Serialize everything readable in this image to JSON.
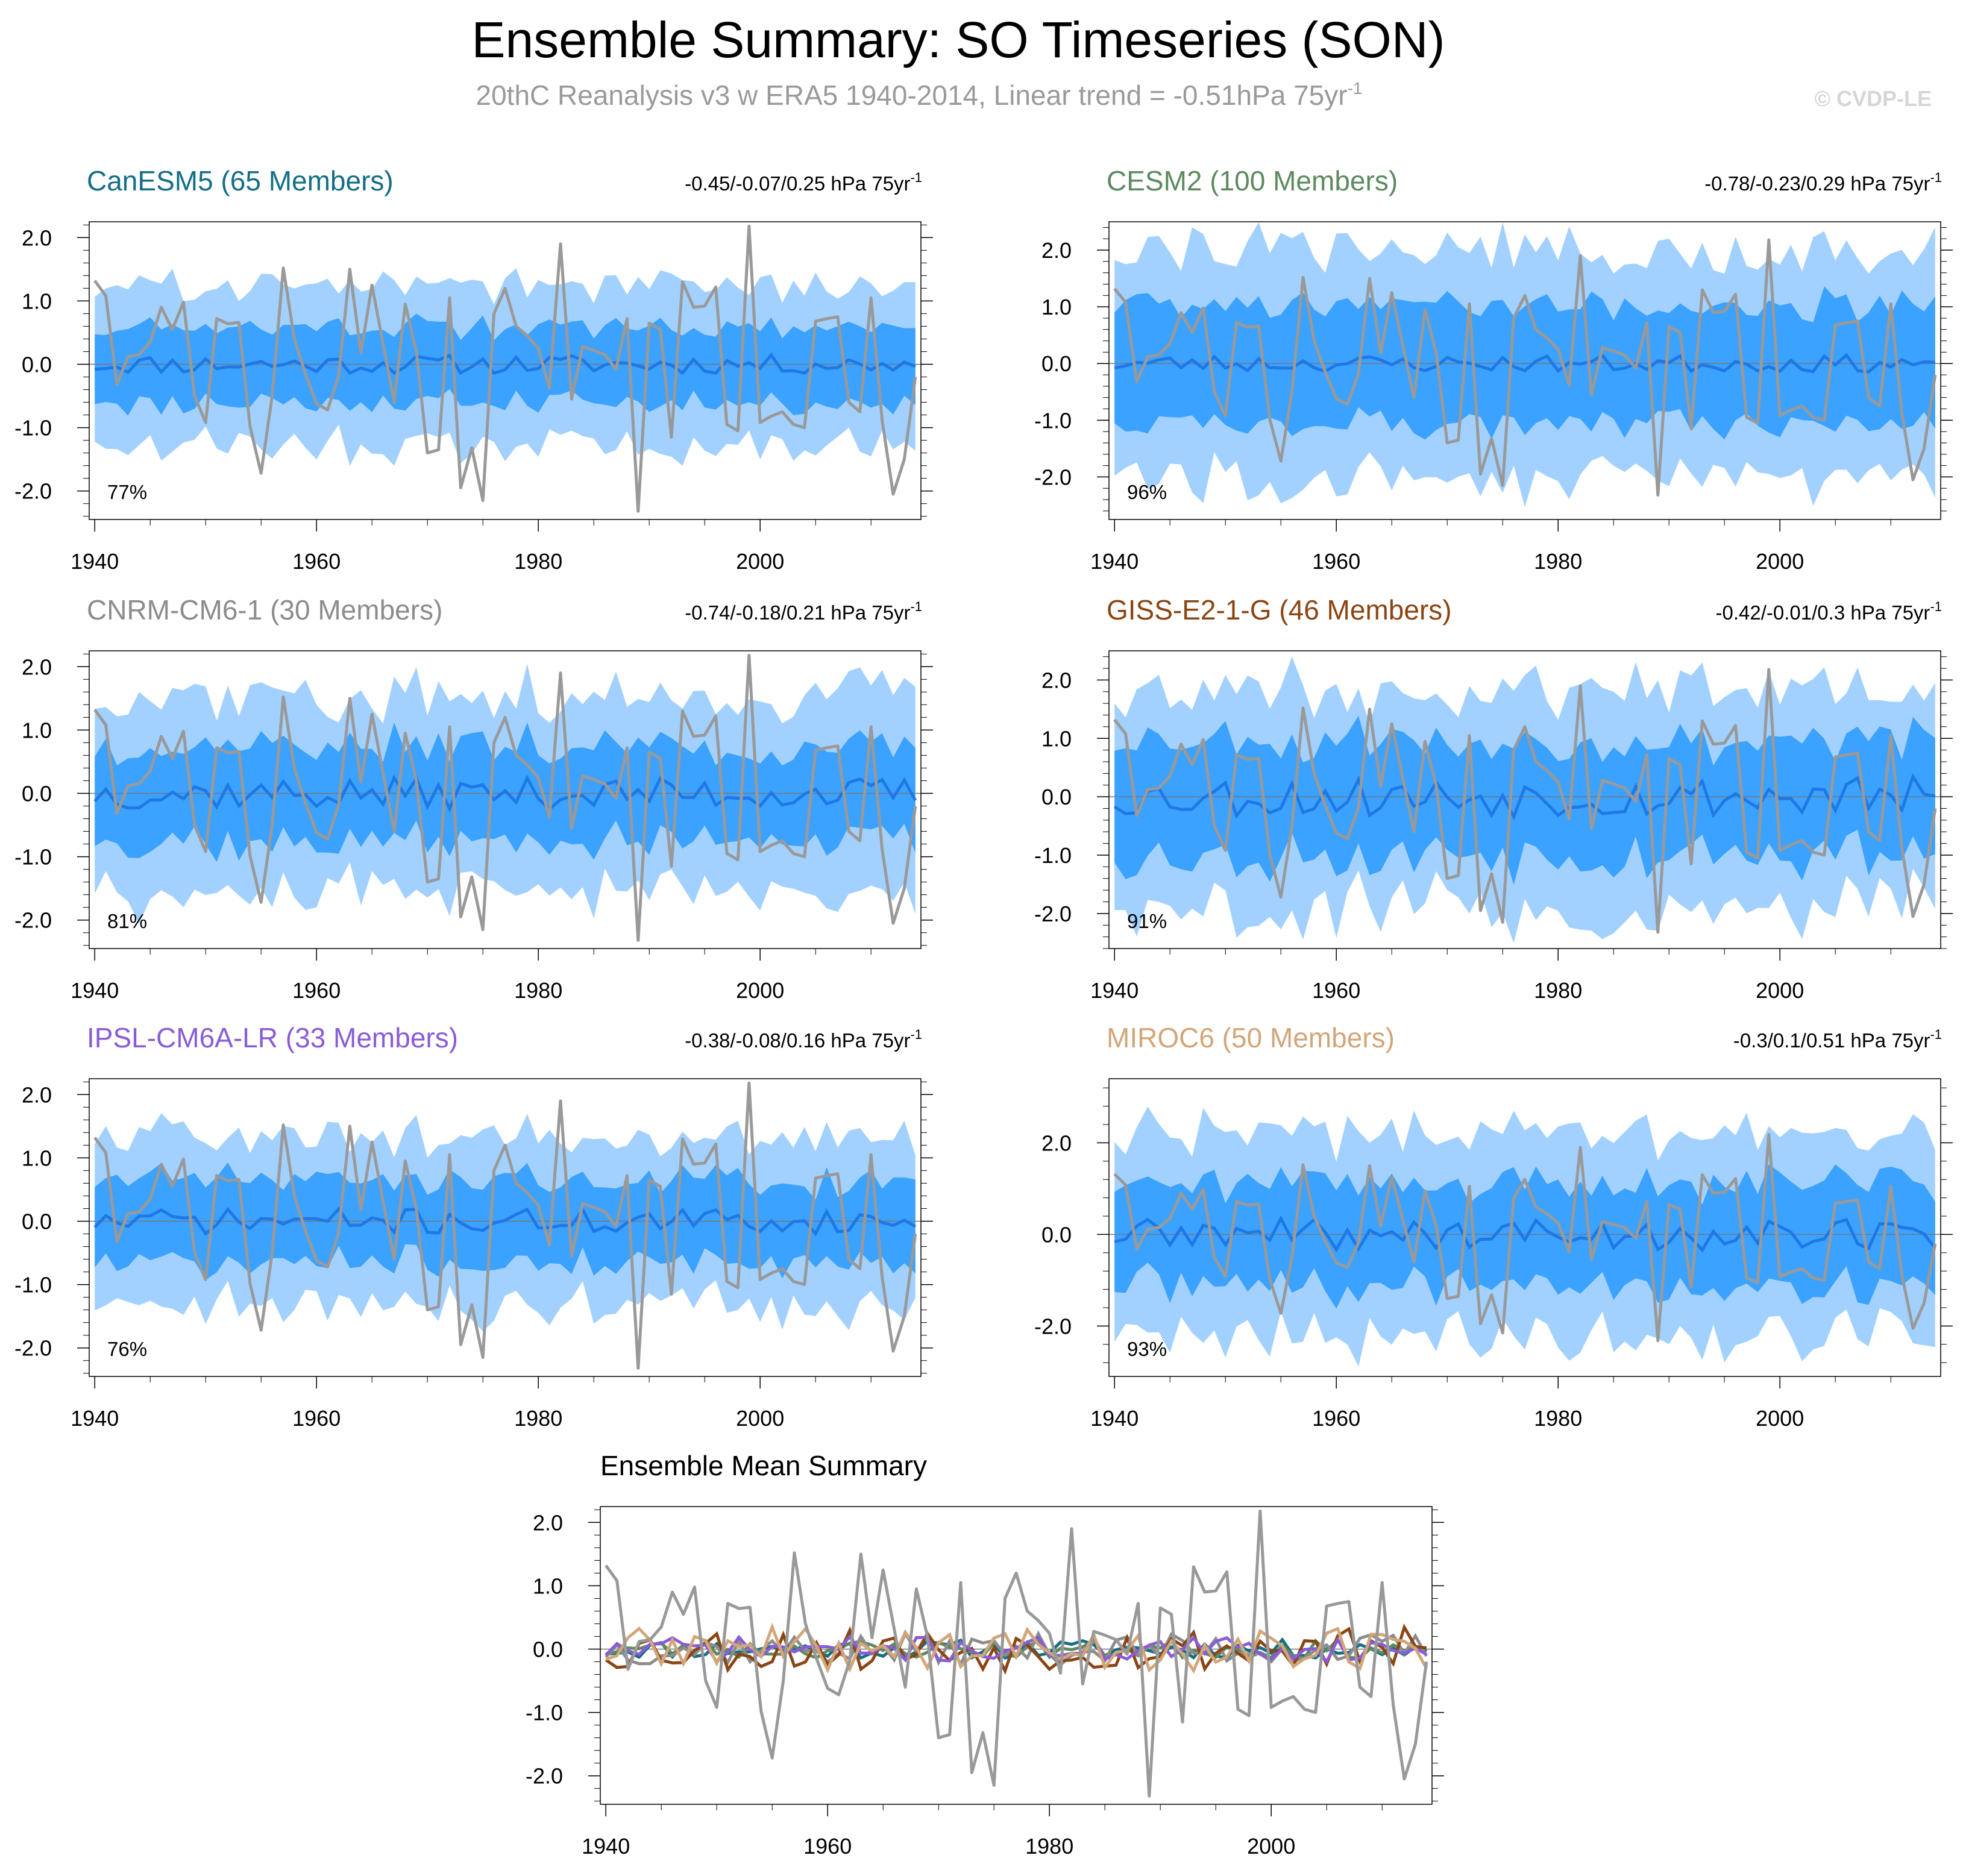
{
  "title": "Ensemble Summary: SO Timeseries (SON)",
  "subtitle": "20thC Reanalysis v3 w ERA5 1940-2014, Linear trend = -0.51hPa 75yr",
  "subtitle_sup": "-1",
  "credit": "© CVDP-LE",
  "colors": {
    "band_outer": "#a3d1ff",
    "band_inner": "#3ba2ff",
    "ens_mean": "#1e78e6",
    "obs": "#999999",
    "zero_line": "#777777"
  },
  "chart_data": [
    {
      "type": "area",
      "title": "CanESM5 (65 Members)",
      "title_color": "#156e85",
      "trend_text": "-0.45/-0.07/0.25 hPa 75yr",
      "trend_sup": "-1",
      "percent": "77%",
      "ylim": [
        -2.45,
        2.25
      ],
      "yticks": [
        2.0,
        1.0,
        0.0,
        -1.0,
        -2.0
      ],
      "ytick_labels": [
        "2.0",
        "1.0",
        "0.0",
        "-1.0",
        "-2.0"
      ],
      "xlim": [
        1939.5,
        2014.5
      ],
      "xticks": [
        1940,
        1960,
        1980,
        2000
      ],
      "xtick_labels": [
        "1940",
        "1960",
        "1980",
        "2000"
      ],
      "outer_halfwidth": 1.25,
      "inner_halfwidth": 0.6,
      "seed": 11,
      "mean_amp": 0.15
    },
    {
      "type": "area",
      "title": "CESM2 (100 Members)",
      "title_color": "#5d8a5f",
      "trend_text": "-0.78/-0.23/0.29 hPa 75yr",
      "trend_sup": "-1",
      "percent": "96%",
      "ylim": [
        -2.75,
        2.5
      ],
      "yticks": [
        2.0,
        1.0,
        0.0,
        -1.0,
        -2.0
      ],
      "ytick_labels": [
        "2.0",
        "1.0",
        "0.0",
        "-1.0",
        "-2.0"
      ],
      "xlim": [
        1939.5,
        2014.5
      ],
      "xticks": [
        1940,
        1960,
        1980,
        2000
      ],
      "xtick_labels": [
        "1940",
        "1960",
        "1980",
        "2000"
      ],
      "outer_halfwidth": 2.05,
      "inner_halfwidth": 1.05,
      "seed": 23,
      "mean_amp": 0.15
    },
    {
      "type": "area",
      "title": "CNRM-CM6-1 (30 Members)",
      "title_color": "#8c8c8c",
      "trend_text": "-0.74/-0.18/0.21 hPa 75yr",
      "trend_sup": "-1",
      "percent": "81%",
      "ylim": [
        -2.45,
        2.25
      ],
      "yticks": [
        2.0,
        1.0,
        0.0,
        -1.0,
        -2.0
      ],
      "ytick_labels": [
        "2.0",
        "1.0",
        "0.0",
        "-1.0",
        "-2.0"
      ],
      "xlim": [
        1939.5,
        2014.5
      ],
      "xticks": [
        1940,
        1960,
        1980,
        2000
      ],
      "xtick_labels": [
        "1940",
        "1960",
        "1980",
        "2000"
      ],
      "outer_halfwidth": 1.55,
      "inner_halfwidth": 0.75,
      "seed": 37,
      "mean_amp": 0.25
    },
    {
      "type": "area",
      "title": "GISS-E2-1-G (46 Members)",
      "title_color": "#8b4513",
      "trend_text": "-0.42/-0.01/0.3 hPa 75yr",
      "trend_sup": "-1",
      "percent": "91%",
      "ylim": [
        -2.6,
        2.5
      ],
      "yticks": [
        2.0,
        1.0,
        0.0,
        -1.0,
        -2.0
      ],
      "ytick_labels": [
        "2.0",
        "1.0",
        "0.0",
        "-1.0",
        "-2.0"
      ],
      "xlim": [
        1939.5,
        2014.5
      ],
      "xticks": [
        1940,
        1960,
        1980,
        2000
      ],
      "xtick_labels": [
        "1940",
        "1960",
        "1980",
        "2000"
      ],
      "outer_halfwidth": 1.85,
      "inner_halfwidth": 1.0,
      "seed": 53,
      "mean_amp": 0.35
    },
    {
      "type": "area",
      "title": "IPSL-CM6A-LR (33 Members)",
      "title_color": "#8a5cd6",
      "trend_text": "-0.38/-0.08/0.16 hPa 75yr",
      "trend_sup": "-1",
      "percent": "76%",
      "ylim": [
        -2.45,
        2.25
      ],
      "yticks": [
        2.0,
        1.0,
        0.0,
        -1.0,
        -2.0
      ],
      "ytick_labels": [
        "2.0",
        "1.0",
        "0.0",
        "-1.0",
        "-2.0"
      ],
      "xlim": [
        1939.5,
        2014.5
      ],
      "xticks": [
        1940,
        1960,
        1980,
        2000
      ],
      "xtick_labels": [
        "1940",
        "1960",
        "1980",
        "2000"
      ],
      "outer_halfwidth": 1.35,
      "inner_halfwidth": 0.65,
      "seed": 71,
      "mean_amp": 0.2
    },
    {
      "type": "area",
      "title": "MIROC6 (50 Members)",
      "title_color": "#d2a679",
      "trend_text": "-0.3/0.1/0.51 hPa 75yr",
      "trend_sup": "-1",
      "percent": "93%",
      "ylim": [
        -3.1,
        3.4
      ],
      "yticks": [
        2.0,
        0.0,
        -2.0
      ],
      "ytick_labels": [
        "2.0",
        "0.0",
        "-2.0"
      ],
      "xlim": [
        1939.5,
        2014.5
      ],
      "xticks": [
        1940,
        1960,
        1980,
        2000
      ],
      "xtick_labels": [
        "1940",
        "1960",
        "1980",
        "2000"
      ],
      "outer_halfwidth": 2.2,
      "inner_halfwidth": 1.1,
      "seed": 89,
      "mean_amp": 0.35
    },
    {
      "type": "line",
      "title": "Ensemble Mean Summary",
      "ylim": [
        -2.45,
        2.25
      ],
      "yticks": [
        2.0,
        1.0,
        0.0,
        -1.0,
        -2.0
      ],
      "ytick_labels": [
        "2.0",
        "1.0",
        "0.0",
        "-1.0",
        "-2.0"
      ],
      "xlim": [
        1939.5,
        2014.5
      ],
      "xticks": [
        1940,
        1960,
        1980,
        2000
      ],
      "xtick_labels": [
        "1940",
        "1960",
        "1980",
        "2000"
      ],
      "series": [
        {
          "name": "CanESM5",
          "color": "#156e85",
          "seed": 11,
          "amp": 0.15
        },
        {
          "name": "CESM2",
          "color": "#5d8a5f",
          "seed": 23,
          "amp": 0.15
        },
        {
          "name": "CNRM-CM6-1",
          "color": "#8c8c8c",
          "seed": 37,
          "amp": 0.25
        },
        {
          "name": "GISS-E2-1-G",
          "color": "#8b4513",
          "seed": 53,
          "amp": 0.35
        },
        {
          "name": "IPSL-CM6A-LR",
          "color": "#8a5cd6",
          "seed": 71,
          "amp": 0.2
        },
        {
          "name": "MIROC6",
          "color": "#d2a679",
          "seed": 89,
          "amp": 0.35
        }
      ]
    }
  ],
  "observations": {
    "name": "20thC Reanalysis v3 w ERA5",
    "years_start": 1940,
    "values": [
      1.32,
      1.08,
      -0.32,
      0.12,
      0.15,
      0.35,
      0.9,
      0.55,
      0.98,
      -0.5,
      -0.92,
      0.72,
      0.64,
      0.66,
      -0.98,
      -1.72,
      -0.5,
      1.52,
      0.4,
      -0.15,
      -0.62,
      -0.72,
      -0.18,
      1.5,
      0.18,
      1.25,
      0.32,
      -0.6,
      0.95,
      0.2,
      -1.4,
      -1.35,
      1.05,
      -1.95,
      -1.32,
      -2.15,
      0.8,
      1.2,
      0.6,
      0.45,
      0.25,
      -0.38,
      1.9,
      -0.55,
      0.28,
      0.22,
      0.15,
      -0.08,
      0.72,
      -2.32,
      0.65,
      0.55,
      -1.15,
      1.3,
      0.9,
      0.92,
      1.22,
      -0.95,
      -1.05,
      2.18,
      -0.92,
      -0.82,
      -0.75,
      -0.95,
      -1.0,
      0.68,
      0.72,
      0.75,
      -0.6,
      -0.75,
      1.05,
      -0.88,
      -2.05,
      -1.5,
      -0.2
    ]
  }
}
